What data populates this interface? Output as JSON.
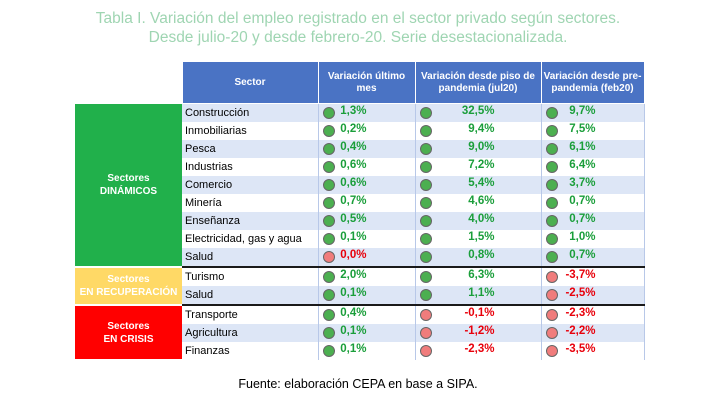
{
  "title_line1": "Tabla I. Variación del empleo registrado en el sector privado según sectores.",
  "title_line2": "Desde julio-20 y desde febrero-20. Serie desestacionalizada.",
  "headers": {
    "sector": "Sector",
    "last_month": "Variación último mes",
    "since_pandemic_floor": "Variación desde piso de pandemia (jul20)",
    "since_pre_pandemic": "Variación desde pre-pandemia (feb20)"
  },
  "colors": {
    "header_bg": "#4a73c4",
    "dinamicos_bg": "#21b04b",
    "recuperacion_bg": "#ffd966",
    "crisis_bg": "#ff0000",
    "positive": "#1a9e3a",
    "negative": "#e8000b",
    "dot_green": "#4caf50",
    "dot_red": "#f07c7c"
  },
  "groups": [
    {
      "name_line1": "Sectores",
      "name_line2": "DINÁMICOS",
      "bg": "#21b04b",
      "text_color": "#ffffff",
      "rows": [
        {
          "sector": "Construcción",
          "v1": "1,3%",
          "v2": "32,5%",
          "v3": "9,7%",
          "s1": "pos",
          "s2": "pos",
          "s3": "pos"
        },
        {
          "sector": "Inmobiliarias",
          "v1": "0,2%",
          "v2": "9,4%",
          "v3": "7,5%",
          "s1": "pos",
          "s2": "pos",
          "s3": "pos"
        },
        {
          "sector": "Pesca",
          "v1": "0,4%",
          "v2": "9,0%",
          "v3": "6,1%",
          "s1": "pos",
          "s2": "pos",
          "s3": "pos"
        },
        {
          "sector": "Industrias",
          "v1": "0,6%",
          "v2": "7,2%",
          "v3": "6,4%",
          "s1": "pos",
          "s2": "pos",
          "s3": "pos"
        },
        {
          "sector": "Comercio",
          "v1": "0,6%",
          "v2": "5,4%",
          "v3": "3,7%",
          "s1": "pos",
          "s2": "pos",
          "s3": "pos"
        },
        {
          "sector": "Minería",
          "v1": "0,7%",
          "v2": "4,6%",
          "v3": "0,7%",
          "s1": "pos",
          "s2": "pos",
          "s3": "pos"
        },
        {
          "sector": "Enseñanza",
          "v1": "0,5%",
          "v2": "4,0%",
          "v3": "0,7%",
          "s1": "pos",
          "s2": "pos",
          "s3": "pos"
        },
        {
          "sector": "Electricidad, gas y agua",
          "v1": "0,1%",
          "v2": "1,5%",
          "v3": "1,0%",
          "s1": "pos",
          "s2": "pos",
          "s3": "pos"
        },
        {
          "sector": "Salud",
          "v1": "0,0%",
          "v2": "0,8%",
          "v3": "0,7%",
          "s1": "neg",
          "s2": "pos",
          "s3": "pos"
        }
      ]
    },
    {
      "name_line1": "Sectores",
      "name_line2": "EN RECUPERACIÓN",
      "bg": "#ffd966",
      "text_color": "#ffffff",
      "rows": [
        {
          "sector": "Turismo",
          "v1": "2,0%",
          "v2": "6,3%",
          "v3": "-3,7%",
          "s1": "pos",
          "s2": "pos",
          "s3": "neg"
        },
        {
          "sector": "Salud",
          "v1": "0,1%",
          "v2": "1,1%",
          "v3": "-2,5%",
          "s1": "pos",
          "s2": "pos",
          "s3": "neg"
        }
      ]
    },
    {
      "name_line1": "Sectores",
      "name_line2": "EN CRISIS",
      "bg": "#ff0000",
      "text_color": "#ffffff",
      "rows": [
        {
          "sector": "Transporte",
          "v1": "0,4%",
          "v2": "-0,1%",
          "v3": "-2,3%",
          "s1": "pos",
          "s2": "neg",
          "s3": "neg"
        },
        {
          "sector": "Agricultura",
          "v1": "0,1%",
          "v2": "-1,2%",
          "v3": "-2,2%",
          "s1": "pos",
          "s2": "neg",
          "s3": "neg"
        },
        {
          "sector": "Finanzas",
          "v1": "0,1%",
          "v2": "-2,3%",
          "v3": "-3,5%",
          "s1": "pos",
          "s2": "neg",
          "s3": "neg"
        }
      ]
    }
  ],
  "source": "Fuente: elaboración CEPA en base a SIPA."
}
